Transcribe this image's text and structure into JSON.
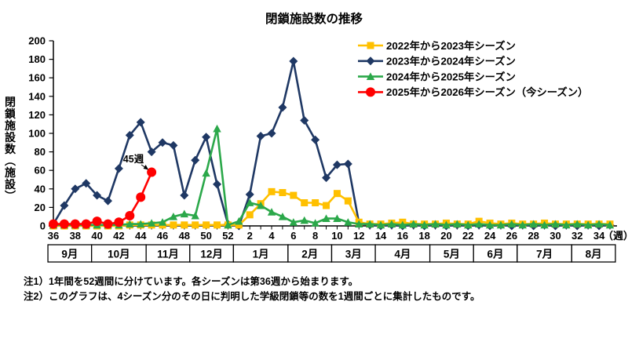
{
  "title": "閉鎖施設数の推移",
  "y_axis": {
    "label": "閉鎖施設数（施設）",
    "min": 0,
    "max": 200,
    "step": 20
  },
  "x_axis": {
    "unit_label": "（週）",
    "label_every": 2
  },
  "annotation": {
    "text": "45週",
    "week": 45,
    "value": 58
  },
  "months": [
    {
      "label": "9月",
      "weeks": 4
    },
    {
      "label": "10月",
      "weeks": 5
    },
    {
      "label": "11月",
      "weeks": 4
    },
    {
      "label": "12月",
      "weeks": 4
    },
    {
      "label": "1月",
      "weeks": 5
    },
    {
      "label": "2月",
      "weeks": 4
    },
    {
      "label": "3月",
      "weeks": 4
    },
    {
      "label": "4月",
      "weeks": 5
    },
    {
      "label": "5月",
      "weeks": 4
    },
    {
      "label": "6月",
      "weeks": 4
    },
    {
      "label": "7月",
      "weeks": 5
    },
    {
      "label": "8月",
      "weeks": 4
    }
  ],
  "notes": [
    "注1）1年間を52週間に分けています。各シーズンは第36週から始まります。",
    "注2）このグラフは、4シーズン分のその日に判明した学級閉鎖等の数を1週間ごとに集計したものです。"
  ],
  "chart_data": {
    "type": "line",
    "title": "閉鎖施設数の推移",
    "ylabel": "閉鎖施設数（施設）",
    "xlabel": "週",
    "ylim": [
      0,
      200
    ],
    "grid": false,
    "legend_position": "top-right",
    "x_weeks": [
      36,
      37,
      38,
      39,
      40,
      41,
      42,
      43,
      44,
      45,
      46,
      47,
      48,
      49,
      50,
      51,
      52,
      1,
      2,
      3,
      4,
      5,
      6,
      7,
      8,
      9,
      10,
      11,
      12,
      13,
      14,
      15,
      16,
      17,
      18,
      19,
      20,
      21,
      22,
      23,
      24,
      25,
      26,
      27,
      28,
      29,
      30,
      31,
      32,
      33,
      34,
      35
    ],
    "series": [
      {
        "name": "2022年から2023年シーズン",
        "marker": "square",
        "color": "#FFC000",
        "values": [
          0,
          0,
          0,
          0,
          0,
          0,
          0,
          1,
          1,
          1,
          1,
          1,
          1,
          1,
          1,
          1,
          1,
          1,
          12,
          24,
          37,
          36,
          33,
          25,
          25,
          22,
          35,
          27,
          4,
          2,
          2,
          3,
          4,
          2,
          2,
          2,
          3,
          2,
          2,
          5,
          3,
          2,
          3,
          2,
          2,
          3,
          2,
          2,
          2,
          2,
          2,
          2
        ]
      },
      {
        "name": "2023年から2024年シーズン",
        "marker": "diamond",
        "color": "#1F3864",
        "values": [
          2,
          22,
          40,
          46,
          33,
          27,
          62,
          98,
          112,
          80,
          90,
          87,
          33,
          71,
          96,
          45,
          2,
          0,
          34,
          97,
          100,
          128,
          178,
          114,
          93,
          52,
          66,
          67,
          3,
          1,
          0,
          1,
          0,
          1,
          0,
          1,
          0,
          1,
          0,
          1,
          0,
          1,
          0,
          1,
          0,
          1,
          0,
          1,
          0,
          1,
          0,
          1
        ]
      },
      {
        "name": "2024年から2025年シーズン",
        "marker": "triangle",
        "color": "#2BA84A",
        "values": [
          1,
          1,
          1,
          1,
          1,
          1,
          1,
          2,
          2,
          3,
          4,
          10,
          13,
          11,
          57,
          105,
          1,
          5,
          25,
          22,
          15,
          10,
          4,
          6,
          3,
          8,
          8,
          4,
          2,
          2,
          1,
          2,
          1,
          2,
          1,
          2,
          1,
          2,
          1,
          2,
          1,
          1,
          2,
          1,
          2,
          1,
          2,
          1,
          2,
          1,
          2,
          1
        ]
      },
      {
        "name": "2025年から2026年シーズン（今シーズン）",
        "marker": "circle",
        "color": "#FF0000",
        "values": [
          2,
          2,
          2,
          2,
          5,
          2,
          4,
          11,
          31,
          58,
          null,
          null,
          null,
          null,
          null,
          null,
          null,
          null,
          null,
          null,
          null,
          null,
          null,
          null,
          null,
          null,
          null,
          null,
          null,
          null,
          null,
          null,
          null,
          null,
          null,
          null,
          null,
          null,
          null,
          null,
          null,
          null,
          null,
          null,
          null,
          null,
          null,
          null,
          null,
          null,
          null,
          null
        ]
      }
    ]
  }
}
